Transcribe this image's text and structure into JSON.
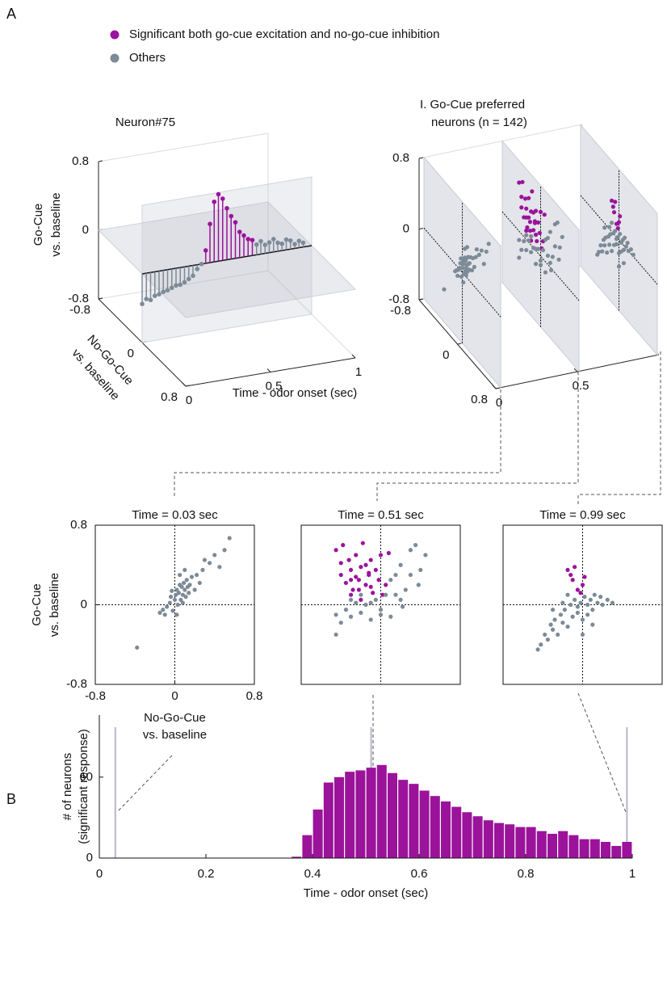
{
  "panel_labels": [
    "A",
    "B"
  ],
  "chart_data": [
    {
      "type": "stem3d",
      "title": "Neuron#75",
      "xlabel": "Time - odor onset (sec)",
      "ylabel": [
        "No-Go-Cue",
        "vs. baseline"
      ],
      "zlabel": [
        "Go-Cue",
        "vs. baseline"
      ],
      "xlim": [
        0,
        1
      ],
      "ylim": [
        -0.8,
        0.8
      ],
      "zlim": [
        -0.8,
        0.8
      ],
      "xticks": [
        0,
        0.5,
        1
      ],
      "yticks": [
        -0.8,
        0,
        0.8
      ],
      "zticks": [
        -0.8,
        0,
        0.8
      ],
      "series": [
        {
          "color": "#9b139b",
          "x": [
            0.375,
            0.4,
            0.425,
            0.45,
            0.475,
            0.5,
            0.525,
            0.55,
            0.575,
            0.6,
            0.625,
            0.65
          ],
          "values": [
            0.15,
            0.45,
            0.7,
            0.78,
            0.72,
            0.6,
            0.5,
            0.42,
            0.3,
            0.25,
            0.2,
            0.18
          ]
        },
        {
          "color": "#7d8a97",
          "x": [
            0,
            0.025,
            0.05,
            0.075,
            0.1,
            0.125,
            0.15,
            0.175,
            0.2,
            0.225,
            0.25,
            0.275,
            0.3,
            0.325,
            0.35,
            0.675,
            0.7,
            0.725,
            0.75,
            0.775,
            0.8,
            0.825,
            0.85,
            0.875,
            0.9,
            0.925,
            0.95
          ],
          "values": [
            -0.35,
            -0.3,
            -0.32,
            -0.28,
            -0.27,
            -0.25,
            -0.24,
            -0.22,
            -0.2,
            -0.2,
            -0.18,
            -0.15,
            -0.12,
            -0.05,
            0.0,
            0.12,
            0.15,
            0.1,
            0.12,
            0.15,
            0.1,
            0.08,
            0.12,
            0.1,
            0.05,
            0.08,
            0.05
          ]
        }
      ]
    },
    {
      "type": "scatter3d",
      "title": [
        "I. Go-Cue preferred",
        "neurons (n = 142)"
      ],
      "xlim": [
        0,
        1
      ],
      "ylim": [
        -0.8,
        0.8
      ],
      "zlim": [
        -0.8,
        0.8
      ],
      "xticks": [
        0,
        0.5
      ],
      "yticks": [
        -0.8,
        0,
        0.8
      ],
      "zticks": [
        -0.8,
        0,
        0.8
      ]
    },
    {
      "type": "scatter",
      "title": "Time = 0.03 sec",
      "time": 0.03,
      "xlabel": [
        "No-Go-Cue",
        "vs. baseline"
      ],
      "ylabel": [
        "Go-Cue",
        "vs. baseline"
      ],
      "xlim": [
        -0.8,
        0.8
      ],
      "ylim": [
        -0.8,
        0.8
      ],
      "xticks": [
        -0.8,
        0,
        0.8
      ],
      "yticks": [
        -0.8,
        0,
        0.8
      ],
      "series": [
        {
          "name": "Significant both go-cue excitation and no-go-cue inhibition",
          "color": "#9b139b",
          "x": [],
          "values": []
        },
        {
          "name": "Others",
          "color": "#7d8a97",
          "x": [
            -0.38,
            -0.15,
            -0.12,
            -0.1,
            -0.08,
            -0.05,
            -0.04,
            -0.02,
            0,
            0.01,
            0.02,
            0.03,
            0.04,
            0.05,
            0.06,
            0.07,
            0.08,
            0.09,
            0.1,
            0.11,
            0.12,
            0.13,
            0.14,
            0.15,
            0.17,
            0.2,
            0.22,
            0.25,
            0.28,
            0.3,
            0.35,
            0.4,
            0.45,
            0.5,
            0.55,
            0.02,
            0.05,
            0.08,
            -0.03,
            0.1
          ],
          "values": [
            -0.43,
            -0.08,
            -0.05,
            -0.1,
            -0.02,
            0.02,
            0.08,
            -0.06,
            0.05,
            0.1,
            0.15,
            0,
            0.12,
            0.2,
            0.05,
            0.18,
            0.1,
            0.22,
            0.15,
            0.08,
            0.25,
            0.18,
            0.12,
            0.2,
            0.28,
            0.15,
            0.3,
            0.22,
            0.35,
            0.45,
            0.42,
            0.5,
            0.38,
            0.55,
            0.67,
            -0.1,
            0.3,
            0.02,
            0.14,
            0.35
          ]
        }
      ]
    },
    {
      "type": "scatter",
      "title": "Time = 0.51 sec",
      "time": 0.51,
      "xlim": [
        -0.8,
        0.8
      ],
      "ylim": [
        -0.8,
        0.8
      ],
      "series": [
        {
          "name": "Significant both go-cue excitation and no-go-cue inhibition",
          "color": "#9b139b",
          "x": [
            -0.45,
            -0.4,
            -0.38,
            -0.35,
            -0.32,
            -0.3,
            -0.28,
            -0.25,
            -0.22,
            -0.2,
            -0.18,
            -0.15,
            -0.12,
            -0.1,
            -0.08,
            -0.05,
            -0.02,
            0,
            0.02,
            0.05,
            -0.3,
            -0.25,
            -0.2,
            -0.15,
            -0.1,
            -0.3,
            -0.22,
            -0.12,
            -0.4,
            0.08
          ],
          "values": [
            0.55,
            0.3,
            0.6,
            0.22,
            0.45,
            0.35,
            0.15,
            0.5,
            0.25,
            0.38,
            0.62,
            0.2,
            0.3,
            0.45,
            0.12,
            0.35,
            0.25,
            0.5,
            0.1,
            0.2,
            0.1,
            0.28,
            0.05,
            0.4,
            0.18,
            0.25,
            0.15,
            0.32,
            0.42,
            0.52
          ]
        },
        {
          "name": "Others",
          "color": "#7d8a97",
          "x": [
            -0.45,
            -0.4,
            -0.35,
            -0.3,
            -0.25,
            -0.2,
            -0.15,
            -0.1,
            -0.05,
            0,
            0.05,
            0.1,
            0.15,
            0.2,
            0.25,
            0.3,
            0.35,
            0.38,
            0.4,
            0.45,
            -0.3,
            -0.2,
            -0.1,
            0,
            0.1,
            0.2,
            0.3,
            -0.45,
            0.22,
            0.15
          ],
          "values": [
            -0.1,
            -0.18,
            -0.05,
            -0.12,
            0.02,
            -0.08,
            0,
            -0.15,
            0.05,
            -0.05,
            0.1,
            0.25,
            0.3,
            0.4,
            0.15,
            0.55,
            0.6,
            0.2,
            0.35,
            0.5,
            0.05,
            0.1,
            0.02,
            -0.1,
            -0.12,
            0.05,
            0.3,
            -0.3,
            -0.02,
            0.1
          ]
        }
      ]
    },
    {
      "type": "scatter",
      "title": "Time = 0.99 sec",
      "time": 0.99,
      "xlim": [
        -0.8,
        0.8
      ],
      "ylim": [
        -0.8,
        0.8
      ],
      "series": [
        {
          "name": "Significant both go-cue excitation and no-go-cue inhibition",
          "color": "#9b139b",
          "x": [
            -0.15,
            -0.12,
            -0.1,
            -0.05,
            -0.02,
            0,
            -0.08,
            0.02
          ],
          "values": [
            0.35,
            0.3,
            0.25,
            0.15,
            0.12,
            0.2,
            0.38,
            0.28
          ]
        },
        {
          "name": "Others",
          "color": "#7d8a97",
          "x": [
            -0.45,
            -0.42,
            -0.38,
            -0.35,
            -0.32,
            -0.3,
            -0.28,
            -0.25,
            -0.22,
            -0.2,
            -0.18,
            -0.15,
            -0.12,
            -0.1,
            -0.08,
            -0.05,
            -0.02,
            0,
            0.02,
            0.05,
            0.08,
            0.1,
            0.12,
            0.15,
            0.18,
            0.2,
            0.25,
            0.3,
            -0.3,
            -0.15,
            0,
            0.1,
            -0.2,
            -0.05,
            0.05
          ],
          "values": [
            -0.45,
            -0.4,
            -0.3,
            -0.35,
            -0.2,
            -0.25,
            -0.15,
            -0.3,
            -0.1,
            -0.18,
            -0.05,
            -0.22,
            0,
            -0.12,
            0.05,
            -0.08,
            0.02,
            -0.15,
            0.08,
            0,
            0.05,
            -0.05,
            0.1,
            0.02,
            0.08,
            0,
            0.05,
            0.02,
            -0.05,
            0.1,
            -0.3,
            -0.2,
            0.02,
            -0.02,
            -0.1
          ]
        }
      ]
    },
    {
      "type": "histogram",
      "color": "#9b139b",
      "xlabel": "Time - odor onset (sec)",
      "ylabel": [
        "# of neurons",
        "(significant response)"
      ],
      "bins": [
        0,
        0.02,
        0.04,
        0.06,
        0.08,
        0.1,
        0.12,
        0.14,
        0.16,
        0.18,
        0.2,
        0.22,
        0.24,
        0.26,
        0.28,
        0.3,
        0.32,
        0.34,
        0.36,
        0.38,
        0.4,
        0.42,
        0.44,
        0.46,
        0.48,
        0.5,
        0.52,
        0.54,
        0.56,
        0.58,
        0.6,
        0.62,
        0.64,
        0.66,
        0.68,
        0.7,
        0.72,
        0.74,
        0.76,
        0.78,
        0.8,
        0.82,
        0.84,
        0.86,
        0.88,
        0.9,
        0.92,
        0.94,
        0.96,
        0.98,
        1
      ],
      "values": [
        0,
        0,
        0,
        0,
        0,
        0,
        0,
        0,
        0,
        0,
        0,
        0,
        0,
        0,
        0,
        0,
        0,
        0,
        1,
        17,
        36,
        56,
        60,
        64,
        65,
        67,
        69,
        63,
        58,
        55,
        50,
        46,
        42,
        38,
        34,
        31,
        28,
        26,
        25,
        23,
        23,
        20,
        18,
        20,
        17,
        14,
        14,
        12,
        9,
        12
      ],
      "xlim": [
        0,
        1
      ],
      "ylim": [
        0,
        106
      ],
      "xticks": [
        0,
        0.2,
        0.4,
        0.6,
        0.8,
        1
      ],
      "yticks": [
        0,
        60
      ]
    }
  ]
}
